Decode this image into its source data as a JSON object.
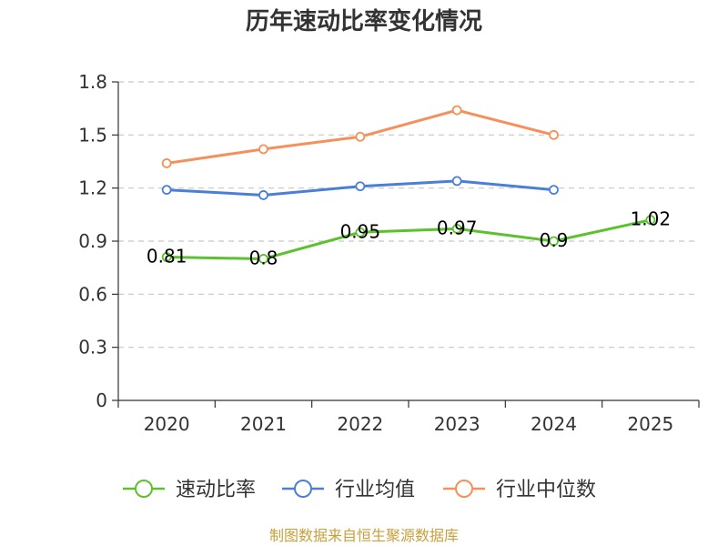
{
  "chart_data": {
    "type": "line",
    "title": "历年速动比率变化情况",
    "categories": [
      "2020",
      "2021",
      "2022",
      "2023",
      "2024",
      "2025"
    ],
    "ylim": [
      0,
      1.8
    ],
    "yticks": [
      "0",
      "0.3",
      "0.6",
      "0.9",
      "1.2",
      "1.5",
      "1.8"
    ],
    "ytick_values": [
      0,
      0.3,
      0.6,
      0.9,
      1.2,
      1.5,
      1.8
    ],
    "grid": true,
    "legend_position": "bottom",
    "series": [
      {
        "name": "速动比率",
        "color": "#5bc22e",
        "values": [
          0.81,
          0.8,
          0.95,
          0.97,
          0.9,
          1.02
        ],
        "labels": [
          "0.81",
          "0.8",
          "0.95",
          "0.97",
          "0.9",
          "1.02"
        ]
      },
      {
        "name": "行业均值",
        "color": "#4a7fd8",
        "values": [
          1.19,
          1.16,
          1.21,
          1.24,
          1.19,
          null
        ]
      },
      {
        "name": "行业中位数",
        "color": "#f5905a",
        "values": [
          1.34,
          1.42,
          1.49,
          1.64,
          1.5,
          null
        ]
      }
    ]
  },
  "source": "制图数据来自恒生聚源数据库"
}
